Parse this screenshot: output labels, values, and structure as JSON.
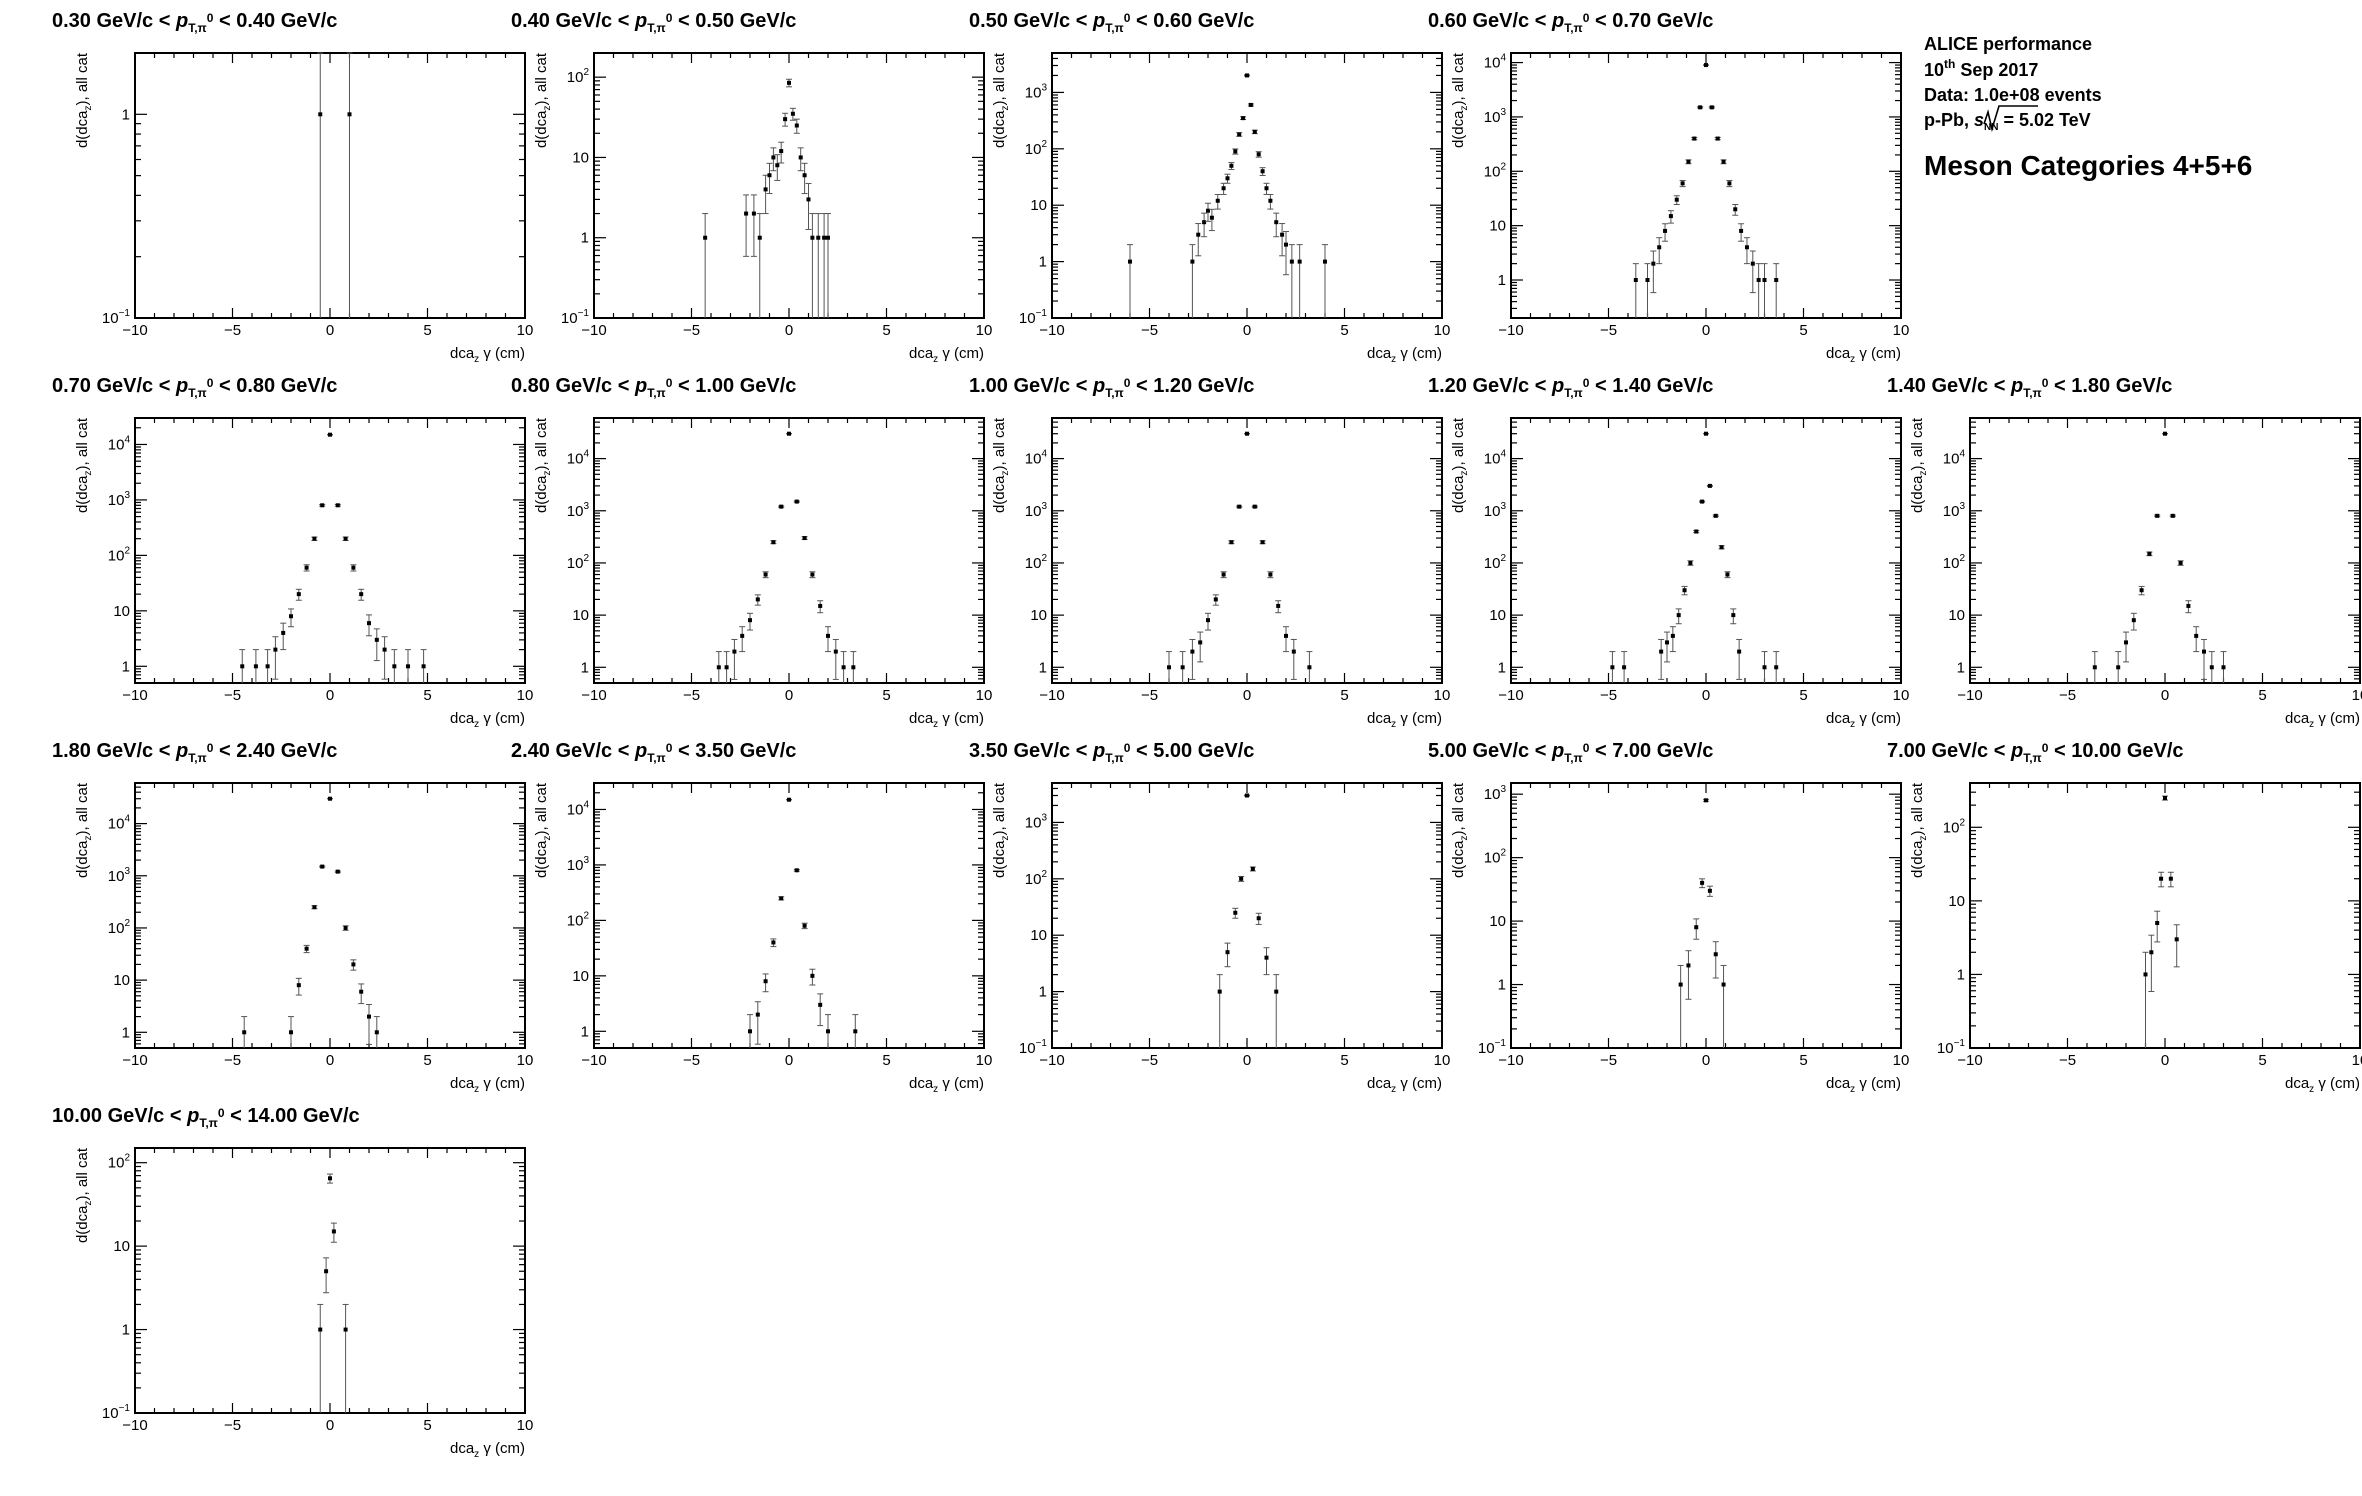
{
  "info": {
    "line1": "ALICE performance",
    "line2_day": "10",
    "line2_sup": "th",
    "line2_rest": " Sep 2017",
    "line3": "Data: 1.0e+08 events",
    "line4_pre": "p-Pb, ",
    "line4_s": "s",
    "line4_sub": "NN",
    "line4_rest": " = 5.02 TeV",
    "headline": "Meson Categories 4+5+6"
  },
  "chart_data": [
    {
      "type": "scatter",
      "title_pre": "0.30 GeV/c < ",
      "title_post": " < 0.40 GeV/c",
      "xlabel": "dcaz γ (cm)",
      "ylabel": "d(dcaz), all cat",
      "ylog": true,
      "xlim": [
        -10,
        10
      ],
      "ylim": [
        0.1,
        2
      ],
      "x": [
        -0.5,
        1.0
      ],
      "y": [
        1,
        1
      ]
    },
    {
      "type": "scatter",
      "title_pre": "0.40 GeV/c < ",
      "title_post": " < 0.50 GeV/c",
      "xlabel": "dcaz γ (cm)",
      "ylabel": "d(dcaz), all cat",
      "ylog": true,
      "xlim": [
        -10,
        10
      ],
      "ylim": [
        0.1,
        200
      ],
      "x": [
        -4.3,
        -2.2,
        -1.8,
        -1.5,
        -1.2,
        -1.0,
        -0.8,
        -0.6,
        -0.4,
        -0.2,
        0,
        0.2,
        0.4,
        0.6,
        0.8,
        1.0,
        1.2,
        1.5,
        1.8,
        2.0
      ],
      "y": [
        1,
        2,
        2,
        1,
        4,
        6,
        10,
        8,
        12,
        30,
        85,
        35,
        25,
        10,
        6,
        3,
        1,
        1,
        1,
        1
      ]
    },
    {
      "type": "scatter",
      "title_pre": "0.50 GeV/c < ",
      "title_post": " < 0.60 GeV/c",
      "xlabel": "dcaz γ (cm)",
      "ylabel": "d(dcaz), all cat",
      "ylog": true,
      "xlim": [
        -10,
        10
      ],
      "ylim": [
        0.1,
        5000
      ],
      "x": [
        -6,
        -2.8,
        -2.5,
        -2.2,
        -2.0,
        -1.8,
        -1.5,
        -1.2,
        -1.0,
        -0.8,
        -0.6,
        -0.4,
        -0.2,
        0,
        0.2,
        0.4,
        0.6,
        0.8,
        1.0,
        1.2,
        1.5,
        1.8,
        2.0,
        2.3,
        2.7,
        4.0
      ],
      "y": [
        1,
        1,
        3,
        5,
        8,
        6,
        12,
        20,
        30,
        50,
        90,
        180,
        350,
        2000,
        600,
        200,
        80,
        40,
        20,
        12,
        5,
        3,
        2,
        1,
        1,
        1
      ]
    },
    {
      "type": "scatter",
      "title_pre": "0.60 GeV/c < ",
      "title_post": " < 0.70 GeV/c",
      "xlabel": "dcaz γ (cm)",
      "ylabel": "d(dcaz), all cat",
      "ylog": true,
      "xlim": [
        -10,
        10
      ],
      "ylim": [
        0.2,
        15000
      ],
      "x": [
        -3.6,
        -3.0,
        -2.7,
        -2.4,
        -2.1,
        -1.8,
        -1.5,
        -1.2,
        -0.9,
        -0.6,
        -0.3,
        0,
        0.3,
        0.6,
        0.9,
        1.2,
        1.5,
        1.8,
        2.1,
        2.4,
        2.7,
        3.0,
        3.6
      ],
      "y": [
        1,
        1,
        2,
        4,
        8,
        15,
        30,
        60,
        150,
        400,
        1500,
        9000,
        1500,
        400,
        150,
        60,
        20,
        8,
        4,
        2,
        1,
        1,
        1
      ]
    },
    {
      "type": "scatter",
      "title_pre": "0.70 GeV/c < ",
      "title_post": " < 0.80 GeV/c",
      "xlabel": "dcaz γ (cm)",
      "ylabel": "d(dcaz), all cat",
      "ylog": true,
      "xlim": [
        -10,
        10
      ],
      "ylim": [
        0.5,
        30000
      ],
      "x": [
        -4.5,
        -3.8,
        -3.2,
        -2.8,
        -2.4,
        -2.0,
        -1.6,
        -1.2,
        -0.8,
        -0.4,
        0,
        0.4,
        0.8,
        1.2,
        1.6,
        2.0,
        2.4,
        2.8,
        3.3,
        4.0,
        4.8
      ],
      "y": [
        1,
        1,
        1,
        2,
        4,
        8,
        20,
        60,
        200,
        800,
        15000,
        800,
        200,
        60,
        20,
        6,
        3,
        2,
        1,
        1,
        1
      ]
    },
    {
      "type": "scatter",
      "title_pre": "0.80 GeV/c < ",
      "title_post": " < 1.00 GeV/c",
      "xlabel": "dcaz γ (cm)",
      "ylabel": "d(dcaz), all cat",
      "ylog": true,
      "xlim": [
        -10,
        10
      ],
      "ylim": [
        0.5,
        60000
      ],
      "x": [
        -3.6,
        -3.2,
        -2.8,
        -2.4,
        -2.0,
        -1.6,
        -1.2,
        -0.8,
        -0.4,
        0,
        0.4,
        0.8,
        1.2,
        1.6,
        2.0,
        2.4,
        2.8,
        3.3
      ],
      "y": [
        1,
        1,
        2,
        4,
        8,
        20,
        60,
        250,
        1200,
        30000,
        1500,
        300,
        60,
        15,
        4,
        2,
        1,
        1
      ]
    },
    {
      "type": "scatter",
      "title_pre": "1.00 GeV/c < ",
      "title_post": " < 1.20 GeV/c",
      "xlabel": "dcaz γ (cm)",
      "ylabel": "d(dcaz), all cat",
      "ylog": true,
      "xlim": [
        -10,
        10
      ],
      "ylim": [
        0.5,
        60000
      ],
      "x": [
        -4.0,
        -3.3,
        -2.8,
        -2.4,
        -2.0,
        -1.6,
        -1.2,
        -0.8,
        -0.4,
        0,
        0.4,
        0.8,
        1.2,
        1.6,
        2.0,
        2.4,
        3.2
      ],
      "y": [
        1,
        1,
        2,
        3,
        8,
        20,
        60,
        250,
        1200,
        30000,
        1200,
        250,
        60,
        15,
        4,
        2,
        1
      ]
    },
    {
      "type": "scatter",
      "title_pre": "1.20 GeV/c < ",
      "title_post": " < 1.40 GeV/c",
      "xlabel": "dcaz γ (cm)",
      "ylabel": "d(dcaz), all cat",
      "ylog": true,
      "xlim": [
        -10,
        10
      ],
      "ylim": [
        0.5,
        60000
      ],
      "x": [
        -4.8,
        -4.2,
        -2.3,
        -2.0,
        -1.7,
        -1.4,
        -1.1,
        -0.8,
        -0.5,
        -0.2,
        0,
        0.2,
        0.5,
        0.8,
        1.1,
        1.4,
        1.7,
        3.0,
        3.6
      ],
      "y": [
        1,
        1,
        2,
        3,
        4,
        10,
        30,
        100,
        400,
        1500,
        30000,
        3000,
        800,
        200,
        60,
        10,
        2,
        1,
        1
      ]
    },
    {
      "type": "scatter",
      "title_pre": "1.40 GeV/c < ",
      "title_post": " < 1.80 GeV/c",
      "xlabel": "dcaz γ (cm)",
      "ylabel": "d(dcaz), all cat",
      "ylog": true,
      "xlim": [
        -10,
        10
      ],
      "ylim": [
        0.5,
        60000
      ],
      "x": [
        -3.6,
        -2.4,
        -2.0,
        -1.6,
        -1.2,
        -0.8,
        -0.4,
        0,
        0.4,
        0.8,
        1.2,
        1.6,
        2.0,
        2.4,
        3.0
      ],
      "y": [
        1,
        1,
        3,
        8,
        30,
        150,
        800,
        30000,
        800,
        100,
        15,
        4,
        2,
        1,
        1
      ]
    },
    {
      "type": "scatter",
      "title_pre": "1.80 GeV/c < ",
      "title_post": " < 2.40 GeV/c",
      "xlabel": "dcaz γ (cm)",
      "ylabel": "d(dcaz), all cat",
      "ylog": true,
      "xlim": [
        -10,
        10
      ],
      "ylim": [
        0.5,
        60000
      ],
      "x": [
        -4.4,
        -2.0,
        -1.6,
        -1.2,
        -0.8,
        -0.4,
        0,
        0.4,
        0.8,
        1.2,
        1.6,
        2.0,
        2.4
      ],
      "y": [
        1,
        1,
        8,
        40,
        250,
        1500,
        30000,
        1200,
        100,
        20,
        6,
        2,
        1
      ]
    },
    {
      "type": "scatter",
      "title_pre": "2.40 GeV/c < ",
      "title_post": " < 3.50 GeV/c",
      "xlabel": "dcaz γ (cm)",
      "ylabel": "d(dcaz), all cat",
      "ylog": true,
      "xlim": [
        -10,
        10
      ],
      "ylim": [
        0.5,
        30000
      ],
      "x": [
        -2.0,
        -1.6,
        -1.2,
        -0.8,
        -0.4,
        0,
        0.4,
        0.8,
        1.2,
        1.6,
        2.0,
        3.4
      ],
      "y": [
        1,
        2,
        8,
        40,
        250,
        15000,
        800,
        80,
        10,
        3,
        1,
        1
      ]
    },
    {
      "type": "scatter",
      "title_pre": "3.50 GeV/c < ",
      "title_post": " < 5.00 GeV/c",
      "xlabel": "dcaz γ (cm)",
      "ylabel": "d(dcaz), all cat",
      "ylog": true,
      "xlim": [
        -10,
        10
      ],
      "ylim": [
        0.1,
        5000
      ],
      "x": [
        -1.4,
        -1.0,
        -0.6,
        -0.3,
        0,
        0.3,
        0.6,
        1.0,
        1.5
      ],
      "y": [
        1,
        5,
        25,
        100,
        3000,
        150,
        20,
        4,
        1
      ]
    },
    {
      "type": "scatter",
      "title_pre": "5.00 GeV/c < ",
      "title_post": " < 7.00 GeV/c",
      "xlabel": "dcaz γ (cm)",
      "ylabel": "d(dcaz), all cat",
      "ylog": true,
      "xlim": [
        -10,
        10
      ],
      "ylim": [
        0.1,
        1500
      ],
      "x": [
        -1.3,
        -0.9,
        -0.5,
        -0.2,
        0,
        0.2,
        0.5,
        0.9
      ],
      "y": [
        1,
        2,
        8,
        40,
        800,
        30,
        3,
        1
      ]
    },
    {
      "type": "scatter",
      "title_pre": "7.00 GeV/c < ",
      "title_post": " < 10.00 GeV/c",
      "xlabel": "dcaz γ (cm)",
      "ylabel": "d(dcaz), all cat",
      "ylog": true,
      "xlim": [
        -10,
        10
      ],
      "ylim": [
        0.1,
        400
      ],
      "x": [
        -1.0,
        -0.7,
        -0.4,
        -0.2,
        0,
        0.3,
        0.6
      ],
      "y": [
        1,
        2,
        5,
        20,
        250,
        20,
        3
      ]
    },
    {
      "type": "scatter",
      "title_pre": "10.00 GeV/c < ",
      "title_post": " < 14.00 GeV/c",
      "xlabel": "dcaz γ (cm)",
      "ylabel": "d(dcaz), all cat",
      "ylog": true,
      "xlim": [
        -10,
        10
      ],
      "ylim": [
        0.1,
        150
      ],
      "x": [
        -0.5,
        -0.2,
        0,
        0.2,
        0.8
      ],
      "y": [
        1,
        5,
        65,
        15,
        1
      ]
    }
  ]
}
